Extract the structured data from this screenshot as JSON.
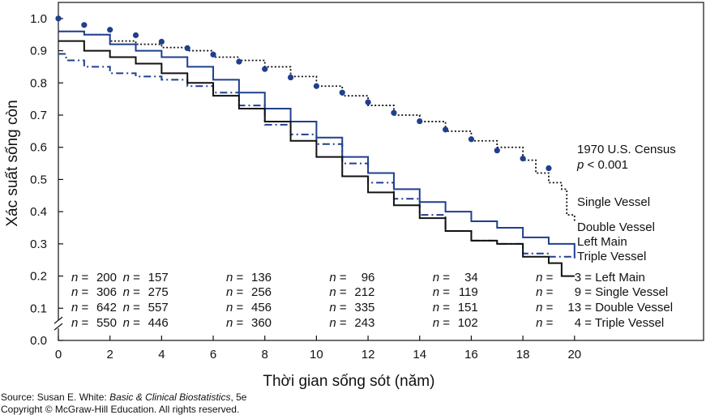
{
  "chart_data": {
    "type": "line",
    "xlabel": "Thời gian sống sót (năm)",
    "ylabel": "Xác suất sống còn",
    "xlim": [
      0,
      25
    ],
    "ylim": [
      0,
      1.05
    ],
    "x_ticks": [
      "0",
      "2",
      "4",
      "6",
      "8",
      "10",
      "12",
      "14",
      "16",
      "18",
      "20"
    ],
    "y_ticks": [
      "0.0",
      "0.1",
      "0.2",
      "0.3",
      "0.4",
      "0.5",
      "0.6",
      "0.7",
      "0.8",
      "0.9",
      "1.0"
    ],
    "axis_break": true,
    "series": [
      {
        "name": "Single Vessel",
        "color": "#111111",
        "style": "dotted",
        "x": [
          0,
          1,
          2,
          3,
          4,
          5,
          6,
          7,
          8,
          9,
          10,
          11,
          12,
          13,
          14,
          15,
          16,
          17,
          18,
          18.5,
          19,
          19.5,
          19.7,
          20
        ],
        "y": [
          0.96,
          0.95,
          0.93,
          0.92,
          0.91,
          0.9,
          0.88,
          0.87,
          0.85,
          0.82,
          0.79,
          0.76,
          0.73,
          0.7,
          0.68,
          0.65,
          0.62,
          0.6,
          0.56,
          0.52,
          0.49,
          0.47,
          0.39,
          0.37
        ]
      },
      {
        "name": "Double Vessel",
        "color": "#1f3f8f",
        "style": "solid",
        "x": [
          0,
          1,
          2,
          3,
          4,
          5,
          6,
          7,
          8,
          9,
          10,
          11,
          12,
          13,
          14,
          15,
          16,
          17,
          18,
          19,
          20
        ],
        "y": [
          0.96,
          0.95,
          0.92,
          0.9,
          0.88,
          0.85,
          0.81,
          0.77,
          0.72,
          0.68,
          0.63,
          0.57,
          0.52,
          0.47,
          0.43,
          0.4,
          0.37,
          0.35,
          0.32,
          0.3,
          0.26
        ]
      },
      {
        "name": "Left Main",
        "color": "#1f3f8f",
        "style": "dashdot",
        "x": [
          0,
          0.3,
          1,
          2,
          3,
          4,
          5,
          6,
          7,
          8,
          9,
          10,
          11,
          12,
          13,
          14,
          15,
          16,
          17,
          18,
          19,
          20
        ],
        "y": [
          0.89,
          0.87,
          0.85,
          0.83,
          0.82,
          0.81,
          0.79,
          0.77,
          0.73,
          0.67,
          0.64,
          0.61,
          0.55,
          0.49,
          0.44,
          0.39,
          0.34,
          0.31,
          0.3,
          0.27,
          0.26,
          0.25
        ]
      },
      {
        "name": "Triple Vessel",
        "color": "#111111",
        "style": "solid",
        "x": [
          0,
          1,
          2,
          3,
          4,
          5,
          6,
          7,
          8,
          9,
          10,
          11,
          12,
          13,
          14,
          15,
          16,
          17,
          18,
          19,
          19.5,
          20
        ],
        "y": [
          0.93,
          0.9,
          0.88,
          0.86,
          0.83,
          0.8,
          0.76,
          0.72,
          0.68,
          0.62,
          0.57,
          0.51,
          0.46,
          0.42,
          0.38,
          0.34,
          0.31,
          0.3,
          0.26,
          0.24,
          0.2,
          0.2
        ]
      },
      {
        "name": "1970 U.S. Census",
        "color": "#1f3f8f",
        "style": "points",
        "x": [
          0,
          1,
          2,
          3,
          4,
          5,
          6,
          7,
          8,
          9,
          10,
          11,
          12,
          13,
          14,
          15,
          16,
          17,
          18,
          19
        ],
        "y": [
          1.0,
          0.98,
          0.965,
          0.948,
          0.928,
          0.908,
          0.888,
          0.866,
          0.843,
          0.817,
          0.79,
          0.77,
          0.74,
          0.707,
          0.681,
          0.655,
          0.625,
          0.59,
          0.565,
          0.535
        ]
      }
    ],
    "annotations": {
      "census": "1970 U.S. Census",
      "p_symbol": "p",
      "p_rest": " < 0.001",
      "single_vessel": "Single Vessel",
      "double_vessel": "Double Vessel",
      "left_main": "Left Main",
      "triple_vessel": "Triple Vessel"
    },
    "n_table": {
      "n_symbol": "n",
      "columns_x": [
        0,
        2,
        6,
        10,
        14,
        18
      ],
      "rows": [
        {
          "label": "Left Main",
          "values": [
            "200",
            "157",
            "136",
            "96",
            "34",
            "3"
          ]
        },
        {
          "label": "Single Vessel",
          "values": [
            "306",
            "275",
            "256",
            "212",
            "119",
            "9"
          ]
        },
        {
          "label": "Double Vessel",
          "values": [
            "642",
            "557",
            "456",
            "335",
            "151",
            "13"
          ]
        },
        {
          "label": "Triple Vessel",
          "values": [
            "550",
            "446",
            "360",
            "243",
            "102",
            "4"
          ]
        }
      ]
    }
  },
  "source": {
    "prefix": "Source: Susan E. White: ",
    "title": "Basic & Clinical Biostatistics",
    "suffix": ", 5e",
    "copyright": "Copyright © McGraw-Hill Education. All rights reserved."
  }
}
